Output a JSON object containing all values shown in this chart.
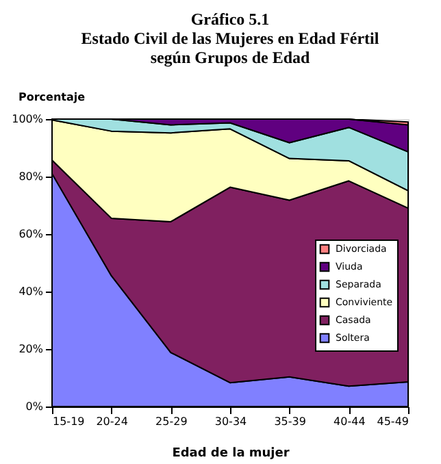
{
  "chart_data": {
    "type": "area",
    "stacked": true,
    "title": [
      "Gráfico 5.1",
      "Estado Civil de las Mujeres en Edad Fértil",
      "según Grupos de Edad"
    ],
    "xlabel": "Edad de la mujer",
    "ylabel": "Porcentaje",
    "categories": [
      "15-19",
      "20-24",
      "25-29",
      "30-34",
      "35-39",
      "40-44",
      "45-49"
    ],
    "series": [
      {
        "name": "Soltera",
        "color": "#8080ff",
        "values": [
          81,
          45.5,
          18.8,
          8.3,
          10.3,
          7.1,
          8.6
        ]
      },
      {
        "name": "Casada",
        "color": "#802060",
        "values": [
          4.7,
          20,
          45.5,
          68,
          61.5,
          71.4,
          60.4
        ]
      },
      {
        "name": "Conviviente",
        "color": "#ffffc0",
        "values": [
          14,
          30.3,
          30.9,
          20.3,
          14.5,
          7,
          6.1
        ]
      },
      {
        "name": "Separada",
        "color": "#a0e0e0",
        "values": [
          0.3,
          4.2,
          2.8,
          2.1,
          5.5,
          11.6,
          13.5
        ]
      },
      {
        "name": "Viuda",
        "color": "#600080",
        "values": [
          0,
          0,
          2,
          1.3,
          8.2,
          2.9,
          9.4
        ]
      },
      {
        "name": "Divorciada",
        "color": "#ff8080",
        "values": [
          0,
          0,
          0,
          0,
          0,
          0,
          1
        ]
      }
    ],
    "ylim": [
      0,
      100
    ],
    "yticks": [
      {
        "value": 0,
        "label": "0%"
      },
      {
        "value": 20,
        "label": "20%"
      },
      {
        "value": 40,
        "label": "40%"
      },
      {
        "value": 60,
        "label": "60%"
      },
      {
        "value": 80,
        "label": "80%"
      },
      {
        "value": 100,
        "label": "100%"
      }
    ],
    "legend": "right"
  }
}
